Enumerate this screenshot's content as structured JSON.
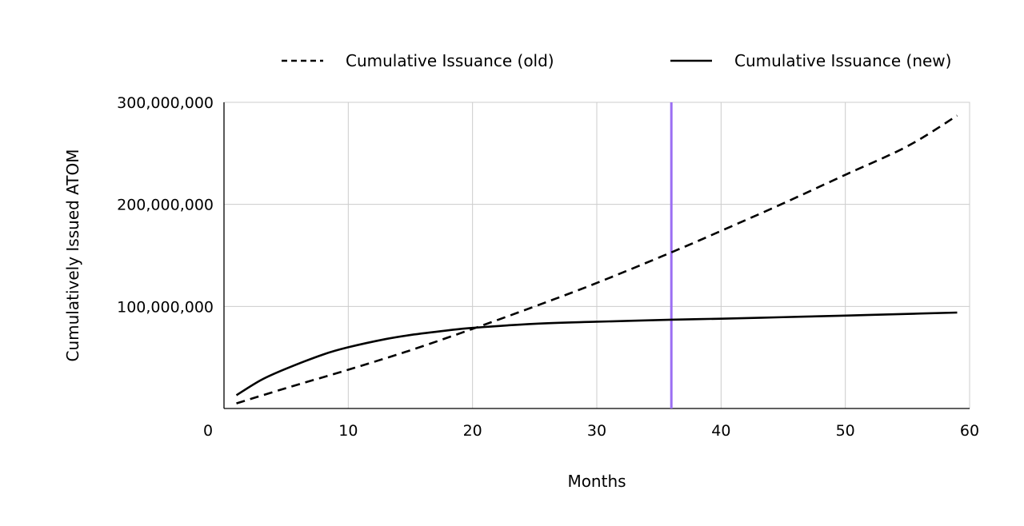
{
  "chart_data": {
    "type": "line",
    "xlabel": "Months",
    "ylabel": "Cumulatively Issued ATOM",
    "xlim": [
      0,
      60
    ],
    "ylim": [
      0,
      300000000
    ],
    "x_ticks": [
      0,
      10,
      20,
      30,
      40,
      50,
      60
    ],
    "x_tick_labels": [
      "0",
      "10",
      "20",
      "30",
      "40",
      "50",
      "60"
    ],
    "y_ticks": [
      100000000,
      200000000,
      300000000
    ],
    "y_tick_labels": [
      "100,000,000",
      "200,000,000",
      "300,000,000"
    ],
    "grid": true,
    "legend_position": "top",
    "marker_line": {
      "x": 36,
      "color": "#9b6ef3"
    },
    "series": [
      {
        "name": "Cumulative Issuance (old)",
        "style": "dashed",
        "color": "#000000",
        "x": [
          1,
          5,
          10,
          15,
          20,
          25,
          30,
          36,
          40,
          45,
          50,
          55,
          59
        ],
        "y": [
          5000000,
          20000000,
          38000000,
          57000000,
          78000000,
          100000000,
          123000000,
          153000000,
          174000000,
          201000000,
          229000000,
          257000000,
          287000000
        ]
      },
      {
        "name": "Cumulative Issuance (new)",
        "style": "solid",
        "color": "#000000",
        "x": [
          1,
          3,
          5,
          8,
          10,
          13,
          15,
          18,
          20,
          25,
          30,
          36,
          40,
          45,
          50,
          55,
          59
        ],
        "y": [
          13000000,
          28000000,
          39000000,
          53000000,
          60000000,
          68000000,
          72000000,
          76500000,
          79000000,
          83000000,
          85000000,
          87000000,
          88000000,
          89500000,
          91000000,
          92700000,
          94000000
        ]
      }
    ]
  }
}
